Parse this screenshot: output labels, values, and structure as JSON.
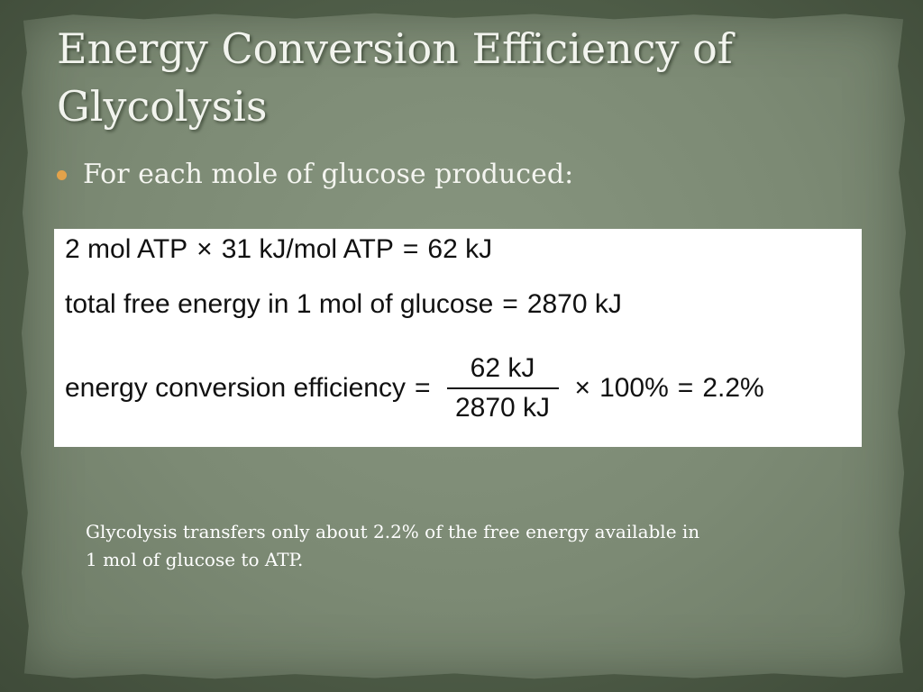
{
  "slide": {
    "title_line1": "Energy Conversion Efficiency of",
    "title_line2": "Glycolysis",
    "bullet": "For each mole of glucose produced:",
    "caption_line1": "Glycolysis transfers only about 2.2% of the free energy available in",
    "caption_line2": "1 mol of glucose to ATP."
  },
  "equations": {
    "eq1": {
      "lhs": "2 mol ATP",
      "times": "×",
      "mid": "31 kJ/mol ATP",
      "equals": "=",
      "rhs": "62 kJ"
    },
    "eq2": {
      "lhs": "total free energy in 1 mol of glucose",
      "equals": "=",
      "rhs": "2870 kJ"
    },
    "eq3": {
      "lhs": "energy conversion efficiency",
      "equals": "=",
      "numerator": "62 kJ",
      "denominator": "2870 kJ",
      "times": "×",
      "factor": "100%",
      "equals2": "=",
      "result": "2.2%"
    }
  },
  "colors": {
    "bullet_accent": "#e3a24a",
    "paper": "#7c8a74",
    "frame": "#4f5e48"
  }
}
